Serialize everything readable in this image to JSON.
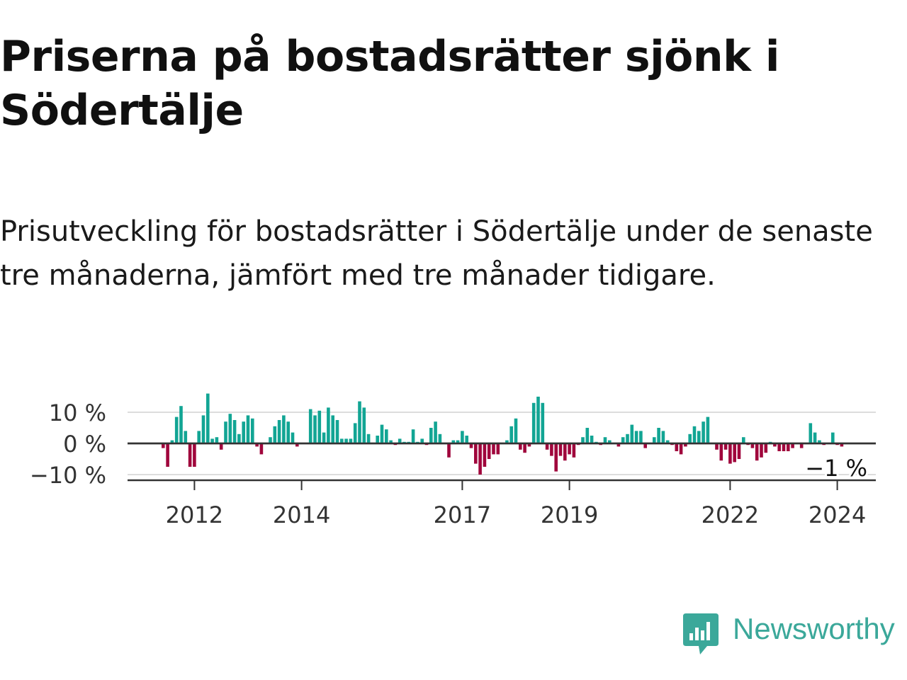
{
  "title": "Priserna på bostadsrätter sjönk i Södertälje",
  "subtitle": "Prisutveckling för bostadsrätter i Södertälje under de senaste tre månaderna, jämfört med tre månader tidigare.",
  "logo": {
    "text": "Newsworthy",
    "icon": "newsworthy-bar-chart-icon",
    "color": "#3ba89a"
  },
  "colors": {
    "positive": "#12a594",
    "negative": "#a0063c",
    "grid": "#dddddd",
    "axis": "#333333"
  },
  "chart_data": {
    "type": "bar",
    "title": "Priserna på bostadsrätter sjönk i Södertälje",
    "subtitle": "Prisutveckling för bostadsrätter i Södertälje under de senaste tre månaderna, jämfört med tre månader tidigare.",
    "xlabel": "",
    "ylabel": "",
    "unit": "%",
    "start": "2011-06",
    "ylim": [
      -11,
      16
    ],
    "yticks": [
      10,
      0,
      -10
    ],
    "ytick_labels": [
      "10 %",
      "0 %",
      "−10 %"
    ],
    "xticks": [
      {
        "index": 7,
        "label": "2012"
      },
      {
        "index": 31,
        "label": "2014"
      },
      {
        "index": 67,
        "label": "2017"
      },
      {
        "index": 91,
        "label": "2019"
      },
      {
        "index": 127,
        "label": "2022"
      },
      {
        "index": 151,
        "label": "2024"
      }
    ],
    "values": [
      -1.5,
      -7.5,
      1,
      8.5,
      12,
      4,
      -7.5,
      -7.5,
      4,
      9,
      16,
      1.5,
      2,
      -2,
      7,
      9.5,
      7.5,
      3,
      7,
      9,
      8,
      -1,
      -3.5,
      0,
      2,
      5.5,
      7.5,
      9,
      7,
      3.5,
      -1,
      0,
      0,
      11,
      9,
      10.5,
      3.5,
      11.5,
      9,
      7.5,
      1.5,
      1.5,
      1.5,
      6.5,
      13.5,
      11.5,
      3,
      0,
      2.5,
      6,
      4.5,
      1,
      -0.5,
      1.5,
      0.5,
      0.5,
      4.5,
      0.5,
      1.5,
      -0.5,
      5,
      7,
      3,
      0,
      -4.5,
      1,
      1,
      4,
      2.5,
      -1.5,
      -6.5,
      -10,
      -7.5,
      -5,
      -3.5,
      -3.5,
      0,
      1,
      5.5,
      8,
      -2,
      -3,
      -1,
      13,
      15,
      13,
      -2,
      -4,
      -9,
      -4,
      -5.5,
      -3.5,
      -4.5,
      -0.5,
      2,
      5,
      2.5,
      0.5,
      -0.5,
      2,
      1,
      0,
      -1,
      2,
      3,
      6,
      4,
      4,
      -1.5,
      0,
      2,
      5,
      4,
      1,
      -0.5,
      -2.5,
      -3.5,
      -1,
      3,
      5.5,
      4,
      7,
      8.5,
      0,
      -2,
      -5.5,
      -2,
      -6.5,
      -6,
      -5,
      2,
      -0.5,
      -1.5,
      -5.5,
      -4.5,
      -3,
      0.5,
      -1,
      -2.5,
      -2.5,
      -2.5,
      -1.5,
      0,
      -1.5,
      0,
      6.5,
      3.5,
      1,
      -0.5,
      0,
      3.5,
      -0.5,
      -1
    ],
    "last_value_label": "−1 %"
  }
}
